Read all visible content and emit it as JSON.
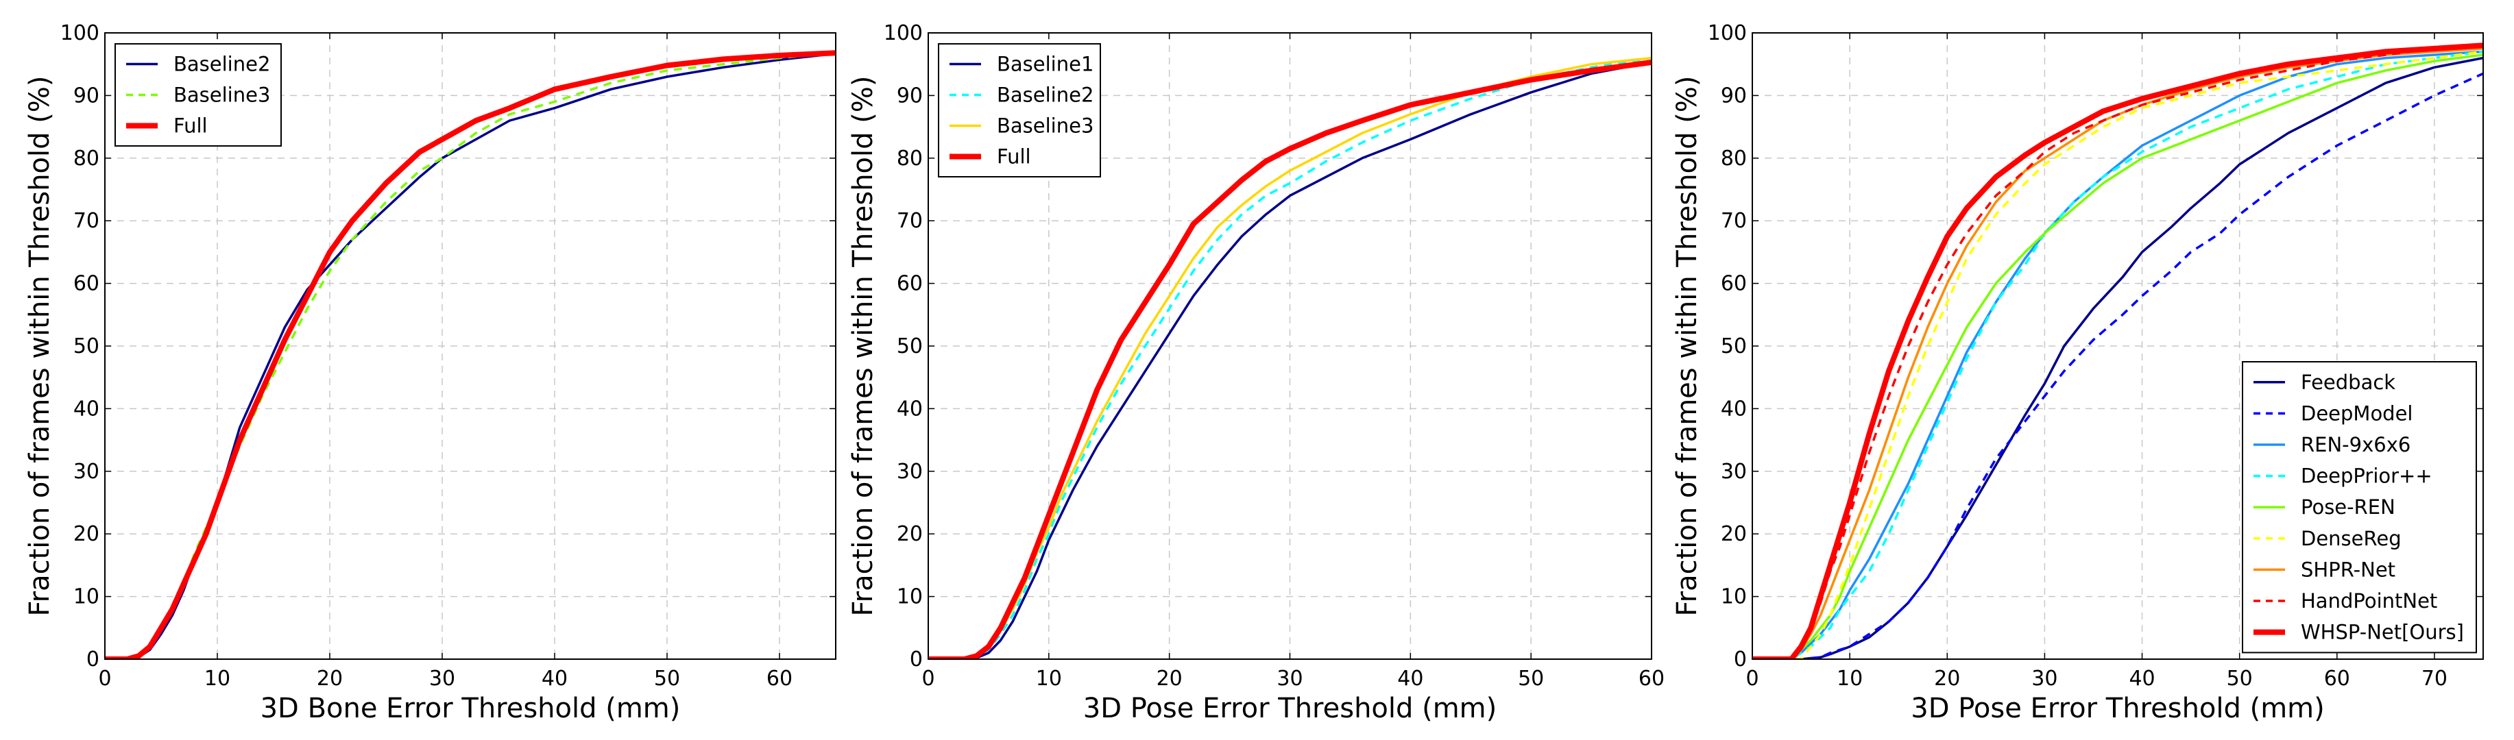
{
  "chart_data": [
    {
      "type": "line",
      "title": "",
      "xlabel": "3D Bone Error Threshold (mm)",
      "ylabel": "Fraction of frames within Threshold (%)",
      "xlim": [
        0,
        65
      ],
      "ylim": [
        0,
        100
      ],
      "xticks": [
        0,
        10,
        20,
        30,
        40,
        50,
        60
      ],
      "yticks": [
        0,
        10,
        20,
        30,
        40,
        50,
        60,
        70,
        80,
        90,
        100
      ],
      "grid": true,
      "legend_position": "top-left",
      "series": [
        {
          "name": "Baseline2",
          "color": "#00008B",
          "dash": "solid",
          "width": 3.5,
          "x": [
            0,
            2,
            3,
            4,
            5,
            6,
            7,
            8,
            9,
            10,
            11,
            12,
            14,
            16,
            18,
            20,
            22,
            25,
            28,
            30,
            33,
            36,
            40,
            45,
            50,
            55,
            60,
            65
          ],
          "y": [
            0,
            0,
            0.3,
            1.5,
            4,
            7,
            11,
            16,
            20,
            25,
            31,
            37,
            45,
            53,
            59,
            63,
            67,
            72,
            77,
            80,
            83,
            86,
            88,
            91,
            93,
            94.5,
            95.7,
            96.7
          ]
        },
        {
          "name": "Baseline3",
          "color": "#7CFC00",
          "dash": "dashed",
          "width": 3.5,
          "x": [
            0,
            2,
            3,
            4,
            5,
            6,
            7,
            8,
            9,
            10,
            11,
            12,
            14,
            16,
            18,
            20,
            22,
            25,
            28,
            30,
            33,
            36,
            40,
            45,
            50,
            55,
            60,
            65
          ],
          "y": [
            0,
            0,
            0.5,
            2,
            5,
            8,
            12,
            17,
            21,
            25,
            30,
            34,
            42,
            49,
            56,
            62,
            67,
            73,
            78,
            80,
            84,
            87,
            89,
            92,
            94,
            95,
            96,
            96.8
          ]
        },
        {
          "name": "Full",
          "color": "#FF0000",
          "dash": "solid",
          "width": 8,
          "x": [
            0,
            2,
            3,
            4,
            5,
            6,
            7,
            8,
            9,
            10,
            11,
            12,
            14,
            16,
            18,
            20,
            22,
            25,
            28,
            30,
            33,
            36,
            40,
            45,
            50,
            55,
            60,
            65
          ],
          "y": [
            0,
            0,
            0.5,
            2,
            5,
            8,
            12,
            16,
            20,
            25,
            30,
            35,
            43,
            51,
            58,
            65,
            70,
            76,
            81,
            83,
            86,
            88,
            91,
            93,
            94.8,
            95.8,
            96.4,
            96.8
          ]
        }
      ]
    },
    {
      "type": "line",
      "title": "",
      "xlabel": "3D Pose Error Threshold (mm)",
      "ylabel": "Fraction of frames within Threshold (%)",
      "xlim": [
        0,
        60
      ],
      "ylim": [
        0,
        100
      ],
      "xticks": [
        0,
        10,
        20,
        30,
        40,
        50,
        60
      ],
      "yticks": [
        0,
        10,
        20,
        30,
        40,
        50,
        60,
        70,
        80,
        90,
        100
      ],
      "grid": true,
      "legend_position": "top-left",
      "series": [
        {
          "name": "Baseline1",
          "color": "#00008B",
          "dash": "solid",
          "width": 3.5,
          "x": [
            0,
            3,
            4,
            5,
            6,
            7,
            8,
            9,
            10,
            11,
            12,
            14,
            16,
            18,
            20,
            22,
            24,
            26,
            28,
            30,
            33,
            36,
            40,
            45,
            50,
            55,
            60
          ],
          "y": [
            0,
            0,
            0.2,
            1,
            3,
            6,
            10,
            14,
            19,
            23,
            27,
            34,
            40,
            46,
            52,
            58,
            63,
            67.5,
            71,
            74,
            77,
            80,
            83,
            87,
            90.5,
            93.5,
            95.3
          ]
        },
        {
          "name": "Baseline2",
          "color": "#00FFFF",
          "dash": "dashed",
          "width": 3.5,
          "x": [
            0,
            3,
            4,
            5,
            6,
            7,
            8,
            9,
            10,
            11,
            12,
            14,
            16,
            18,
            20,
            22,
            24,
            26,
            28,
            30,
            33,
            36,
            40,
            45,
            50,
            55,
            60
          ],
          "y": [
            0,
            0,
            0.3,
            1.5,
            4,
            7,
            11,
            16,
            20,
            25,
            29,
            37,
            44,
            50,
            56,
            62,
            67,
            71,
            74,
            76,
            79.5,
            82.5,
            86,
            89.5,
            92.5,
            94.5,
            96
          ]
        },
        {
          "name": "Baseline3",
          "color": "#FFD700",
          "dash": "solid",
          "width": 3.5,
          "x": [
            0,
            3,
            4,
            5,
            6,
            7,
            8,
            9,
            10,
            11,
            12,
            14,
            16,
            18,
            20,
            22,
            24,
            26,
            28,
            30,
            33,
            36,
            40,
            45,
            50,
            55,
            60
          ],
          "y": [
            0,
            0,
            0.4,
            2,
            4.5,
            8,
            12,
            17,
            21,
            26,
            30,
            38,
            45,
            52,
            58,
            64,
            69,
            72.5,
            75.5,
            78,
            81,
            84,
            87,
            90.5,
            93,
            95,
            96
          ]
        },
        {
          "name": "Full",
          "color": "#FF0000",
          "dash": "solid",
          "width": 8,
          "x": [
            0,
            3,
            4,
            5,
            6,
            7,
            8,
            9,
            10,
            11,
            12,
            14,
            16,
            18,
            20,
            22,
            24,
            26,
            28,
            30,
            33,
            36,
            40,
            45,
            50,
            55,
            60
          ],
          "y": [
            0,
            0,
            0.5,
            2,
            5,
            9,
            13,
            18,
            23,
            28,
            33,
            43,
            51,
            57,
            63,
            69.5,
            73,
            76.5,
            79.5,
            81.5,
            84,
            86,
            88.5,
            90.5,
            92.5,
            94,
            95.3
          ]
        }
      ]
    },
    {
      "type": "line",
      "title": "",
      "xlabel": "3D Pose Error Threshold (mm)",
      "ylabel": "Fraction of frames within Threshold (%)",
      "xlim": [
        0,
        75
      ],
      "ylim": [
        0,
        100
      ],
      "xticks": [
        0,
        10,
        20,
        30,
        40,
        50,
        60,
        70
      ],
      "yticks": [
        0,
        10,
        20,
        30,
        40,
        50,
        60,
        70,
        80,
        90,
        100
      ],
      "grid": true,
      "legend_position": "lower-right",
      "series": [
        {
          "name": "Feedback",
          "color": "#00008B",
          "dash": "solid",
          "width": 3.5,
          "x": [
            0,
            5,
            7,
            8,
            10,
            12,
            14,
            16,
            18,
            20,
            22,
            25,
            28,
            30,
            32,
            35,
            38,
            40,
            43,
            45,
            48,
            50,
            55,
            60,
            65,
            70,
            75
          ],
          "y": [
            0,
            0,
            0.3,
            0.8,
            2,
            3.5,
            6,
            9,
            13,
            18,
            23,
            31,
            39,
            44,
            50,
            56,
            61,
            65,
            69,
            72,
            76,
            79,
            84,
            88,
            92,
            94.5,
            96
          ]
        },
        {
          "name": "DeepModel",
          "color": "#0000FF",
          "dash": "dashed",
          "width": 3.5,
          "x": [
            0,
            5,
            7,
            8,
            10,
            12,
            14,
            16,
            18,
            20,
            22,
            25,
            28,
            30,
            32,
            35,
            38,
            40,
            43,
            45,
            48,
            50,
            55,
            60,
            65,
            70,
            75
          ],
          "y": [
            0,
            0,
            0.3,
            1,
            2,
            4,
            6,
            9,
            13,
            18,
            24,
            32,
            38,
            42,
            46,
            51,
            55,
            58,
            62,
            65,
            68,
            71,
            77,
            82,
            86,
            90,
            93.5
          ]
        },
        {
          "name": "REN-9x6x6",
          "color": "#1E90FF",
          "dash": "solid",
          "width": 3.5,
          "x": [
            0,
            4,
            5,
            6,
            7,
            8,
            9,
            10,
            12,
            14,
            16,
            18,
            20,
            22,
            25,
            28,
            30,
            33,
            36,
            40,
            45,
            50,
            55,
            60,
            65,
            70,
            75
          ],
          "y": [
            0,
            0,
            1,
            2.5,
            4,
            6,
            8,
            11,
            16,
            22,
            28,
            35,
            42,
            49,
            57,
            64,
            68,
            73,
            77,
            82,
            86,
            90,
            93,
            95,
            96,
            96.5,
            97
          ]
        },
        {
          "name": "DeepPrior++",
          "color": "#00FFFF",
          "dash": "dashed",
          "width": 3.5,
          "x": [
            0,
            4,
            5,
            6,
            7,
            8,
            9,
            10,
            12,
            14,
            16,
            18,
            20,
            22,
            25,
            28,
            30,
            33,
            36,
            40,
            45,
            50,
            55,
            60,
            65,
            70,
            75
          ],
          "y": [
            0,
            0,
            1,
            2,
            3.5,
            5,
            8,
            10,
            14,
            20,
            27,
            34,
            41,
            48,
            57,
            63,
            68,
            73,
            77,
            81,
            85,
            88,
            91,
            93,
            95,
            96,
            97
          ]
        },
        {
          "name": "Pose-REN",
          "color": "#7CFC00",
          "dash": "solid",
          "width": 3.5,
          "x": [
            0,
            4,
            5,
            6,
            7,
            8,
            9,
            10,
            12,
            14,
            16,
            18,
            20,
            22,
            25,
            28,
            30,
            33,
            36,
            40,
            45,
            50,
            55,
            60,
            65,
            70,
            75
          ],
          "y": [
            0,
            0,
            1.5,
            3,
            5,
            7,
            10,
            14,
            21,
            28,
            35,
            41,
            47,
            53,
            60,
            65,
            68,
            72,
            76,
            80,
            83,
            86,
            89,
            92,
            94,
            95.5,
            96.5
          ]
        },
        {
          "name": "DenseReg",
          "color": "#FFFF00",
          "dash": "dashed",
          "width": 3.5,
          "x": [
            0,
            5,
            6,
            7,
            8,
            9,
            10,
            12,
            14,
            16,
            18,
            20,
            22,
            25,
            28,
            30,
            33,
            36,
            40,
            45,
            50,
            55,
            60,
            65,
            70,
            75
          ],
          "y": [
            0,
            0,
            2,
            4,
            7,
            11,
            15,
            24,
            33,
            42,
            50,
            57,
            64,
            71,
            76,
            79,
            82,
            85,
            88,
            90,
            92,
            93,
            94,
            95,
            96,
            97
          ]
        },
        {
          "name": "SHPR-Net",
          "color": "#FF8C00",
          "dash": "solid",
          "width": 3.5,
          "x": [
            0,
            4,
            5,
            6,
            7,
            8,
            9,
            10,
            12,
            14,
            16,
            18,
            20,
            22,
            25,
            28,
            30,
            33,
            36,
            40,
            45,
            50,
            55,
            60,
            65,
            70,
            75
          ],
          "y": [
            0,
            0,
            1.5,
            4,
            7,
            11,
            15,
            19,
            27,
            36,
            45,
            53,
            60,
            66,
            73,
            78,
            80,
            83,
            86,
            88.5,
            91,
            93,
            94.5,
            95.5,
            96.5,
            97,
            97.5
          ]
        },
        {
          "name": "HandPointNet",
          "color": "#FF0000",
          "dash": "dashed",
          "width": 3.5,
          "x": [
            0,
            4,
            5,
            6,
            7,
            8,
            9,
            10,
            12,
            14,
            16,
            18,
            20,
            22,
            25,
            28,
            30,
            33,
            36,
            40,
            45,
            50,
            55,
            60,
            65,
            70,
            75
          ],
          "y": [
            0,
            0,
            2,
            5,
            9,
            14,
            18,
            23,
            33,
            42,
            50,
            57,
            63,
            68,
            74,
            78,
            81,
            84,
            86,
            88.5,
            90.5,
            92.5,
            94,
            95.5,
            96.5,
            97.5,
            98
          ]
        },
        {
          "name": "WHSP-Net[Ours]",
          "color": "#FF0000",
          "dash": "solid",
          "width": 8,
          "x": [
            0,
            4,
            5,
            6,
            7,
            8,
            9,
            10,
            12,
            14,
            16,
            18,
            20,
            22,
            25,
            28,
            30,
            33,
            36,
            40,
            45,
            50,
            55,
            60,
            65,
            70,
            75
          ],
          "y": [
            0,
            0,
            2,
            5,
            10,
            15,
            20,
            25,
            36,
            46,
            54,
            61,
            67.5,
            72,
            77,
            80.5,
            82.5,
            85,
            87.5,
            89.5,
            91.5,
            93.5,
            95,
            96,
            97,
            97.5,
            98
          ]
        }
      ]
    }
  ]
}
